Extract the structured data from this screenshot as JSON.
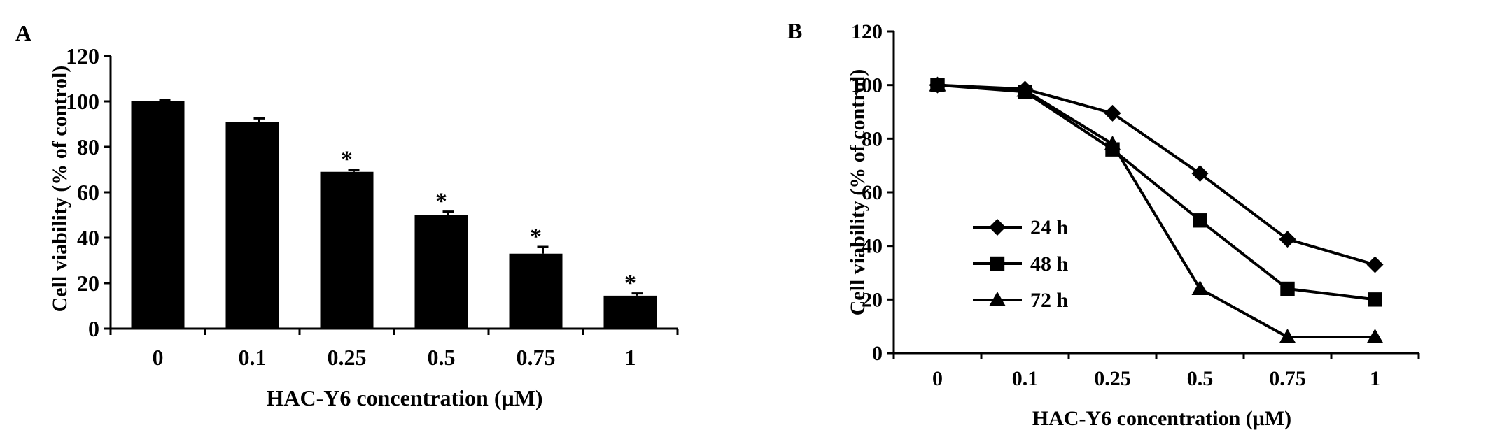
{
  "chart_data": [
    {
      "panel_label": "A",
      "type": "bar",
      "title": "",
      "xlabel": "HAC-Y6 concentration (μM)",
      "ylabel": "Cell viability (% of control)",
      "categories": [
        "0",
        "0.1",
        "0.25",
        "0.5",
        "0.75",
        "1"
      ],
      "values": [
        100,
        91,
        69,
        50,
        33,
        14.5
      ],
      "errors": [
        0.5,
        1.5,
        1,
        1.5,
        3,
        1
      ],
      "significance": [
        "",
        "",
        "*",
        "*",
        "*",
        "*"
      ],
      "ylim": [
        0,
        120
      ],
      "yticks": [
        "0",
        "20",
        "40",
        "60",
        "80",
        "100",
        "120"
      ],
      "bar_color": "#000000"
    },
    {
      "panel_label": "B",
      "type": "line",
      "title": "",
      "xlabel": "HAC-Y6 concentration (μM)",
      "ylabel": "Cell viability (% of control)",
      "categories": [
        "0",
        "0.1",
        "0.25",
        "0.5",
        "0.75",
        "1"
      ],
      "ylim": [
        0,
        120
      ],
      "yticks": [
        "0",
        "20",
        "40",
        "60",
        "80",
        "100",
        "120"
      ],
      "legend_position": "left",
      "series": [
        {
          "name": "24 h",
          "marker": "diamond",
          "values": [
            100,
            98.5,
            89.5,
            67,
            42.5,
            33
          ]
        },
        {
          "name": "48 h",
          "marker": "square",
          "values": [
            100,
            97.5,
            76,
            49.5,
            24,
            20
          ]
        },
        {
          "name": "72 h",
          "marker": "triangle",
          "values": [
            100,
            98,
            78,
            24,
            6,
            6
          ]
        }
      ],
      "line_color": "#000000"
    }
  ]
}
